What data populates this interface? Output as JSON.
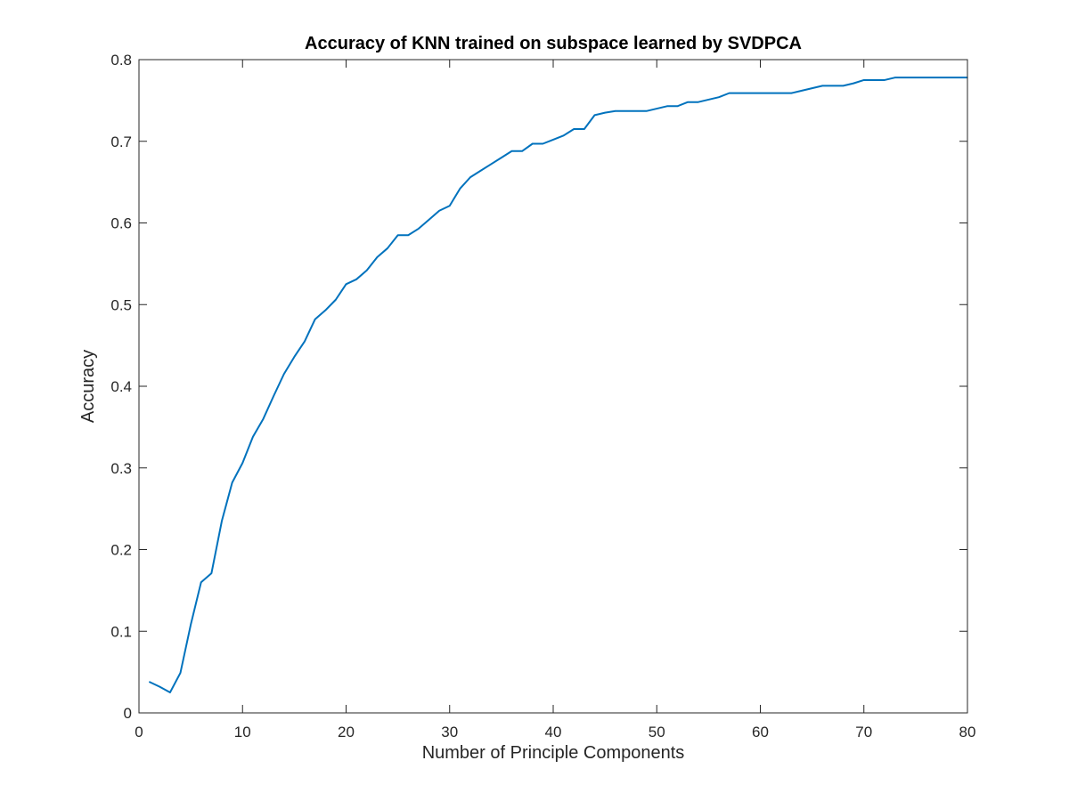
{
  "chart_data": {
    "type": "line",
    "title": "Accuracy of KNN trained on subspace learned by SVDPCA",
    "xlabel": "Number of Principle Components",
    "ylabel": "Accuracy",
    "xlim": [
      0,
      80
    ],
    "ylim": [
      0,
      0.8
    ],
    "xticks": [
      0,
      10,
      20,
      30,
      40,
      50,
      60,
      70,
      80
    ],
    "xtick_labels": [
      "0",
      "10",
      "20",
      "30",
      "40",
      "50",
      "60",
      "70",
      "80"
    ],
    "yticks": [
      0,
      0.1,
      0.2,
      0.3,
      0.4,
      0.5,
      0.6,
      0.7,
      0.8
    ],
    "ytick_labels": [
      "0",
      "0.1",
      "0.2",
      "0.3",
      "0.4",
      "0.5",
      "0.6",
      "0.7",
      "0.8"
    ],
    "grid": false,
    "legend": "none",
    "series": [
      {
        "color": "#0072bd",
        "x": [
          1,
          2,
          3,
          4,
          5,
          6,
          7,
          8,
          9,
          10,
          11,
          12,
          13,
          14,
          15,
          16,
          17,
          18,
          19,
          20,
          21,
          22,
          23,
          24,
          25,
          26,
          27,
          28,
          29,
          30,
          31,
          32,
          33,
          34,
          35,
          36,
          37,
          38,
          39,
          40,
          41,
          42,
          43,
          44,
          45,
          46,
          47,
          48,
          49,
          50,
          51,
          52,
          53,
          54,
          55,
          56,
          57,
          58,
          59,
          60,
          61,
          62,
          63,
          64,
          65,
          66,
          67,
          68,
          69,
          70,
          71,
          72,
          73,
          74,
          75,
          76,
          77,
          78,
          79,
          80
        ],
        "y": [
          0.038,
          0.032,
          0.025,
          0.049,
          0.108,
          0.16,
          0.171,
          0.235,
          0.282,
          0.306,
          0.338,
          0.36,
          0.388,
          0.415,
          0.436,
          0.455,
          0.482,
          0.493,
          0.506,
          0.525,
          0.531,
          0.542,
          0.558,
          0.569,
          0.585,
          0.585,
          0.593,
          0.604,
          0.615,
          0.621,
          0.642,
          0.656,
          0.664,
          0.672,
          0.68,
          0.688,
          0.688,
          0.697,
          0.697,
          0.702,
          0.707,
          0.715,
          0.715,
          0.732,
          0.735,
          0.737,
          0.737,
          0.737,
          0.737,
          0.74,
          0.743,
          0.743,
          0.748,
          0.748,
          0.751,
          0.754,
          0.759,
          0.759,
          0.759,
          0.759,
          0.759,
          0.759,
          0.759,
          0.762,
          0.765,
          0.768,
          0.768,
          0.768,
          0.771,
          0.775,
          0.775,
          0.775,
          0.778,
          0.778,
          0.778,
          0.778,
          0.778,
          0.778,
          0.778,
          0.778
        ]
      }
    ]
  }
}
